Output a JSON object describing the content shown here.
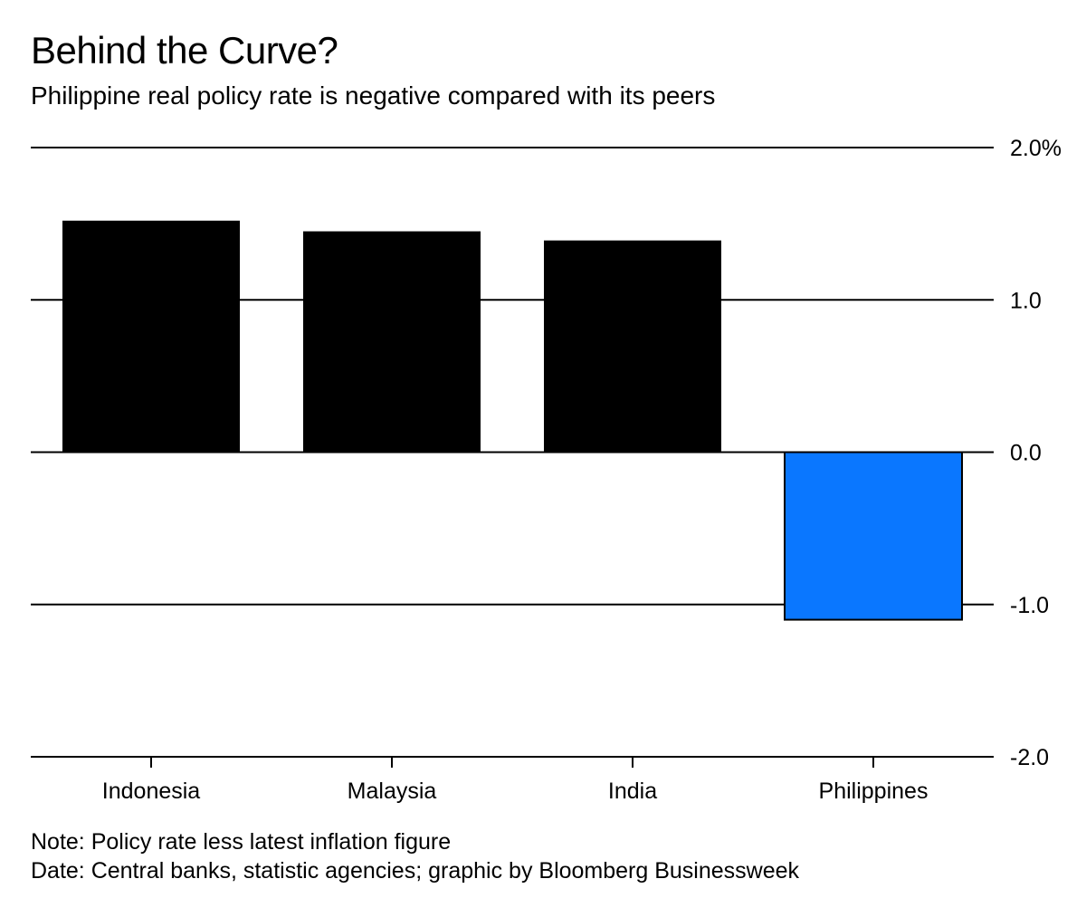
{
  "title": "Behind the Curve?",
  "subtitle": "Philippine real policy rate is negative compared with its peers",
  "notes": {
    "note": "Note: Policy rate less latest inflation figure",
    "source": "Date: Central banks, statistic agencies; graphic by Bloomberg Businessweek"
  },
  "colors": {
    "positive_bar": "#000000",
    "negative_bar": "#0a77ff",
    "gridline": "#000000",
    "text": "#000000"
  },
  "chart_data": {
    "type": "bar",
    "categories": [
      "Indonesia",
      "Malaysia",
      "India",
      "Philippines"
    ],
    "values": [
      1.52,
      1.45,
      1.39,
      -1.1
    ],
    "ylim": [
      -2.0,
      2.0
    ],
    "yticks": [
      2.0,
      1.0,
      0.0,
      -1.0,
      -2.0
    ],
    "ytick_labels": [
      "2.0%",
      "1.0",
      "0.0",
      "-1.0",
      "-2.0"
    ],
    "xlabel": "",
    "ylabel": "",
    "grid": true,
    "y_axis_side": "right"
  }
}
